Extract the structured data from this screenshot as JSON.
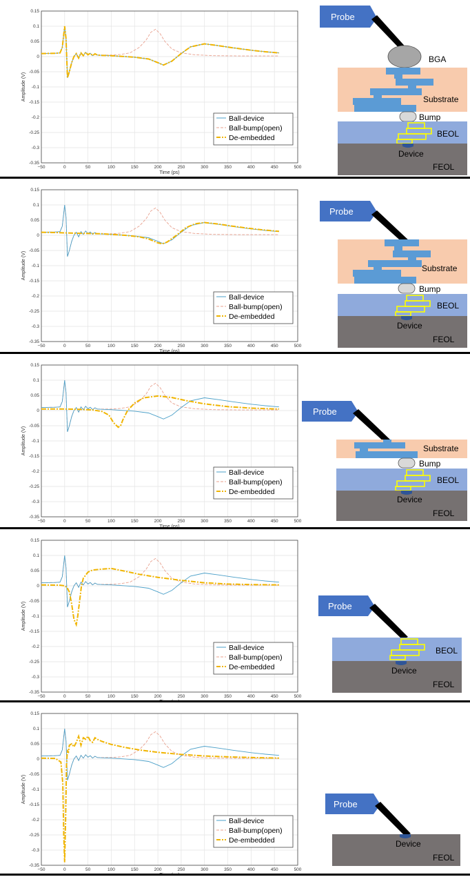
{
  "chart_data": [
    {
      "type": "line",
      "xlabel": "Time (ps)",
      "ylabel": "Amplitude (V)",
      "xlim": [
        -50,
        500
      ],
      "ylim": [
        -0.35,
        0.15
      ],
      "xticks": [
        "−50",
        "0",
        "50",
        "100",
        "150",
        "200",
        "250",
        "300",
        "350",
        "400",
        "450",
        "500"
      ],
      "yticks": [
        "0.15",
        "0.1",
        "0.05",
        "0",
        "-0.05",
        "-0.1",
        "-0.15",
        "-0.2",
        "-0.25",
        "-0.3",
        "-0.35"
      ],
      "grid": true,
      "legend": "bottom-right",
      "series": [
        {
          "name": "Ball-device",
          "color": "#4a9fc8",
          "style": "solid",
          "x": [
            -50,
            -20,
            -10,
            -5,
            0,
            3,
            6,
            10,
            15,
            20,
            25,
            30,
            35,
            40,
            45,
            50,
            55,
            60,
            65,
            70,
            80,
            100,
            120,
            150,
            180,
            200,
            212,
            230,
            250,
            270,
            300,
            330,
            360,
            400,
            430,
            460
          ],
          "y": [
            0.01,
            0.011,
            0.012,
            0.03,
            0.1,
            0.06,
            -0.07,
            -0.05,
            -0.02,
            0,
            0.01,
            -0.005,
            0.012,
            0.003,
            0.014,
            0.006,
            0.011,
            0.003,
            0.009,
            0.005,
            0.004,
            0.003,
            0.001,
            -0.002,
            -0.008,
            -0.02,
            -0.028,
            -0.015,
            0.01,
            0.032,
            0.042,
            0.036,
            0.029,
            0.021,
            0.016,
            0.012
          ]
        },
        {
          "name": "Ball-bump(open)",
          "color": "#e8a08e",
          "style": "dashed",
          "x": [
            -50,
            -20,
            -10,
            -5,
            0,
            3,
            6,
            10,
            15,
            20,
            25,
            30,
            35,
            40,
            45,
            50,
            55,
            60,
            65,
            70,
            80,
            100,
            120,
            140,
            160,
            175,
            185,
            195,
            205,
            215,
            230,
            250,
            280,
            320,
            380,
            460
          ],
          "y": [
            0.01,
            0.011,
            0.012,
            0.03,
            0.1,
            0.06,
            -0.07,
            -0.05,
            -0.02,
            0,
            0.01,
            -0.005,
            0.012,
            0.003,
            0.014,
            0.006,
            0.011,
            0.003,
            0.009,
            0.005,
            0.005,
            0.005,
            0.007,
            0.012,
            0.03,
            0.055,
            0.08,
            0.09,
            0.075,
            0.05,
            0.025,
            0.012,
            0.006,
            0.003,
            0.002,
            0.002
          ]
        }
      ],
      "deembedded": {
        "name": "De-embedded",
        "color": "#f0b400",
        "style": "dash-dot",
        "x": [
          -50,
          -20,
          -10,
          -5,
          0,
          3,
          6,
          10,
          15,
          20,
          25,
          30,
          35,
          40,
          45,
          50,
          55,
          60,
          65,
          70,
          80,
          100,
          120,
          150,
          180,
          200,
          212,
          230,
          250,
          270,
          300,
          330,
          360,
          400,
          430,
          460
        ],
        "y": [
          0.01,
          0.011,
          0.012,
          0.03,
          0.1,
          0.06,
          -0.07,
          -0.05,
          -0.02,
          0,
          0.01,
          -0.005,
          0.012,
          0.003,
          0.014,
          0.006,
          0.011,
          0.003,
          0.009,
          0.005,
          0.004,
          0.003,
          0.001,
          -0.002,
          -0.008,
          -0.02,
          -0.028,
          -0.015,
          0.01,
          0.032,
          0.042,
          0.036,
          0.029,
          0.021,
          0.016,
          0.012
        ]
      },
      "legend_labels": [
        "Ball-device",
        "Ball-bump(open)",
        "De-embedded"
      ]
    },
    {
      "type": "line",
      "xlabel": "Time (ps)",
      "ylabel": "Amplitude (V)",
      "xlim": [
        -50,
        500
      ],
      "ylim": [
        -0.35,
        0.15
      ],
      "xticks": [
        "−50",
        "0",
        "50",
        "100",
        "150",
        "200",
        "250",
        "300",
        "350",
        "400",
        "450",
        "500"
      ],
      "yticks": [
        "0.15",
        "0.1",
        "0.05",
        "0",
        "-0.05",
        "-0.1",
        "-0.15",
        "-0.2",
        "-0.25",
        "-0.3",
        "-0.35"
      ],
      "grid": true,
      "legend": "bottom-right",
      "deembedded": {
        "name": "De-embedded",
        "color": "#f0b400",
        "style": "dash-dot",
        "x": [
          -50,
          -20,
          0,
          20,
          50,
          80,
          100,
          130,
          160,
          180,
          200,
          210,
          220,
          240,
          260,
          280,
          300,
          330,
          360,
          400,
          430,
          460
        ],
        "y": [
          0.01,
          0.009,
          0.008,
          0.007,
          0.006,
          0.005,
          0.003,
          0.0,
          -0.005,
          -0.012,
          -0.025,
          -0.028,
          -0.022,
          0.0,
          0.025,
          0.038,
          0.042,
          0.037,
          0.03,
          0.022,
          0.017,
          0.013
        ]
      },
      "legend_labels": [
        "Ball-device",
        "Ball-bump(open)",
        "De-embedded"
      ]
    },
    {
      "type": "line",
      "xlabel": "Time (ps)",
      "ylabel": "Amplitude (V)",
      "xlim": [
        -50,
        500
      ],
      "ylim": [
        -0.35,
        0.15
      ],
      "xticks": [
        "−50",
        "0",
        "50",
        "100",
        "150",
        "200",
        "250",
        "300",
        "350",
        "400",
        "450",
        "500"
      ],
      "yticks": [
        "0.15",
        "0.1",
        "0.05",
        "0",
        "-0.05",
        "-0.1",
        "-0.15",
        "-0.2",
        "-0.25",
        "-0.3",
        "-0.35"
      ],
      "grid": true,
      "legend": "bottom-right",
      "deembedded": {
        "name": "De-embedded",
        "color": "#f0b400",
        "style": "dash-dot",
        "x": [
          -50,
          -20,
          0,
          30,
          60,
          80,
          95,
          105,
          115,
          120,
          125,
          135,
          150,
          170,
          200,
          230,
          260,
          300,
          350,
          400,
          460
        ],
        "y": [
          0.005,
          0.005,
          0.005,
          0.004,
          0.002,
          -0.003,
          -0.015,
          -0.04,
          -0.055,
          -0.05,
          -0.03,
          0.0,
          0.025,
          0.042,
          0.048,
          0.043,
          0.033,
          0.022,
          0.013,
          0.008,
          0.005
        ]
      },
      "legend_labels": [
        "Ball-device",
        "Ball-bump(open)",
        "De-embedded"
      ]
    },
    {
      "type": "line",
      "xlabel": "Time (ps)",
      "ylabel": "Amplitude (V)",
      "xlim": [
        -50,
        500
      ],
      "ylim": [
        -0.35,
        0.15
      ],
      "xticks": [
        "−50",
        "0",
        "50",
        "100",
        "150",
        "200",
        "250",
        "300",
        "350",
        "400",
        "450",
        "500"
      ],
      "yticks": [
        "0.15",
        "0.1",
        "0.05",
        "0",
        "-0.05",
        "-0.1",
        "-0.15",
        "-0.2",
        "-0.25",
        "-0.3",
        "-0.35"
      ],
      "grid": true,
      "legend": "bottom-right",
      "deembedded": {
        "name": "De-embedded",
        "color": "#f0b400",
        "style": "dash-dot",
        "x": [
          -50,
          -10,
          0,
          5,
          10,
          15,
          20,
          25,
          28,
          32,
          36,
          40,
          50,
          60,
          80,
          100,
          130,
          160,
          200,
          250,
          300,
          350,
          400,
          460
        ],
        "y": [
          0.003,
          0.002,
          0.0,
          -0.005,
          -0.02,
          -0.06,
          -0.11,
          -0.128,
          -0.1,
          -0.05,
          0.0,
          0.025,
          0.045,
          0.052,
          0.055,
          0.057,
          0.048,
          0.038,
          0.028,
          0.018,
          0.01,
          0.006,
          0.004,
          0.003
        ]
      },
      "legend_labels": [
        "Ball-device",
        "Ball-bump(open)",
        "De-embedded"
      ]
    },
    {
      "type": "line",
      "xlabel": "Time (ps)",
      "ylabel": "Amplitude (V)",
      "xlim": [
        -50,
        500
      ],
      "ylim": [
        -0.35,
        0.15
      ],
      "xticks": [
        "−50",
        "0",
        "50",
        "100",
        "150",
        "200",
        "250",
        "300",
        "350",
        "400",
        "450",
        "500"
      ],
      "yticks": [
        "0.15",
        "0.1",
        "0.05",
        "0",
        "-0.05",
        "-0.1",
        "-0.15",
        "-0.2",
        "-0.25",
        "-0.3",
        "-0.35"
      ],
      "grid": true,
      "legend": "bottom-right",
      "deembedded": {
        "name": "De-embedded",
        "color": "#f0b400",
        "style": "dash-dot",
        "x": [
          -50,
          -20,
          -8,
          -4,
          -2,
          0,
          2,
          4,
          6,
          8,
          10,
          15,
          20,
          25,
          30,
          35,
          40,
          45,
          50,
          55,
          60,
          65,
          70,
          80,
          100,
          130,
          160,
          200,
          250,
          300,
          350,
          400,
          460
        ],
        "y": [
          0.003,
          0.002,
          -0.01,
          -0.08,
          -0.25,
          -0.34,
          -0.2,
          -0.02,
          0.03,
          0.02,
          0.045,
          0.05,
          0.04,
          0.055,
          0.075,
          0.045,
          0.07,
          0.065,
          0.075,
          0.06,
          0.055,
          0.07,
          0.065,
          0.058,
          0.048,
          0.038,
          0.03,
          0.022,
          0.015,
          0.01,
          0.007,
          0.005,
          0.003
        ]
      },
      "legend_labels": [
        "Ball-device",
        "Ball-bump(open)",
        "De-embedded"
      ]
    }
  ],
  "diagrams": [
    {
      "probe": "Probe",
      "layers": [
        "BGA",
        "Substrate",
        "Bump",
        "BEOL",
        "Device",
        "FEOL"
      ]
    },
    {
      "probe": "Probe",
      "layers": [
        "Substrate",
        "Bump",
        "BEOL",
        "Device",
        "FEOL"
      ]
    },
    {
      "probe": "Probe",
      "layers": [
        "Substrate",
        "Bump",
        "BEOL",
        "Device",
        "FEOL"
      ]
    },
    {
      "probe": "Probe",
      "layers": [
        "BEOL",
        "Device",
        "FEOL"
      ]
    },
    {
      "probe": "Probe",
      "layers": [
        "Device",
        "FEOL"
      ]
    }
  ],
  "colors": {
    "probe": "#4472c4",
    "substrate": "#f8cbad",
    "metal": "#5b9bd5",
    "beol": "#8faadc",
    "feol": "#767171",
    "device": "#2f5597",
    "via": "#ffff00",
    "bga": "#a6a6a6",
    "bump": "#d9d9d9"
  }
}
